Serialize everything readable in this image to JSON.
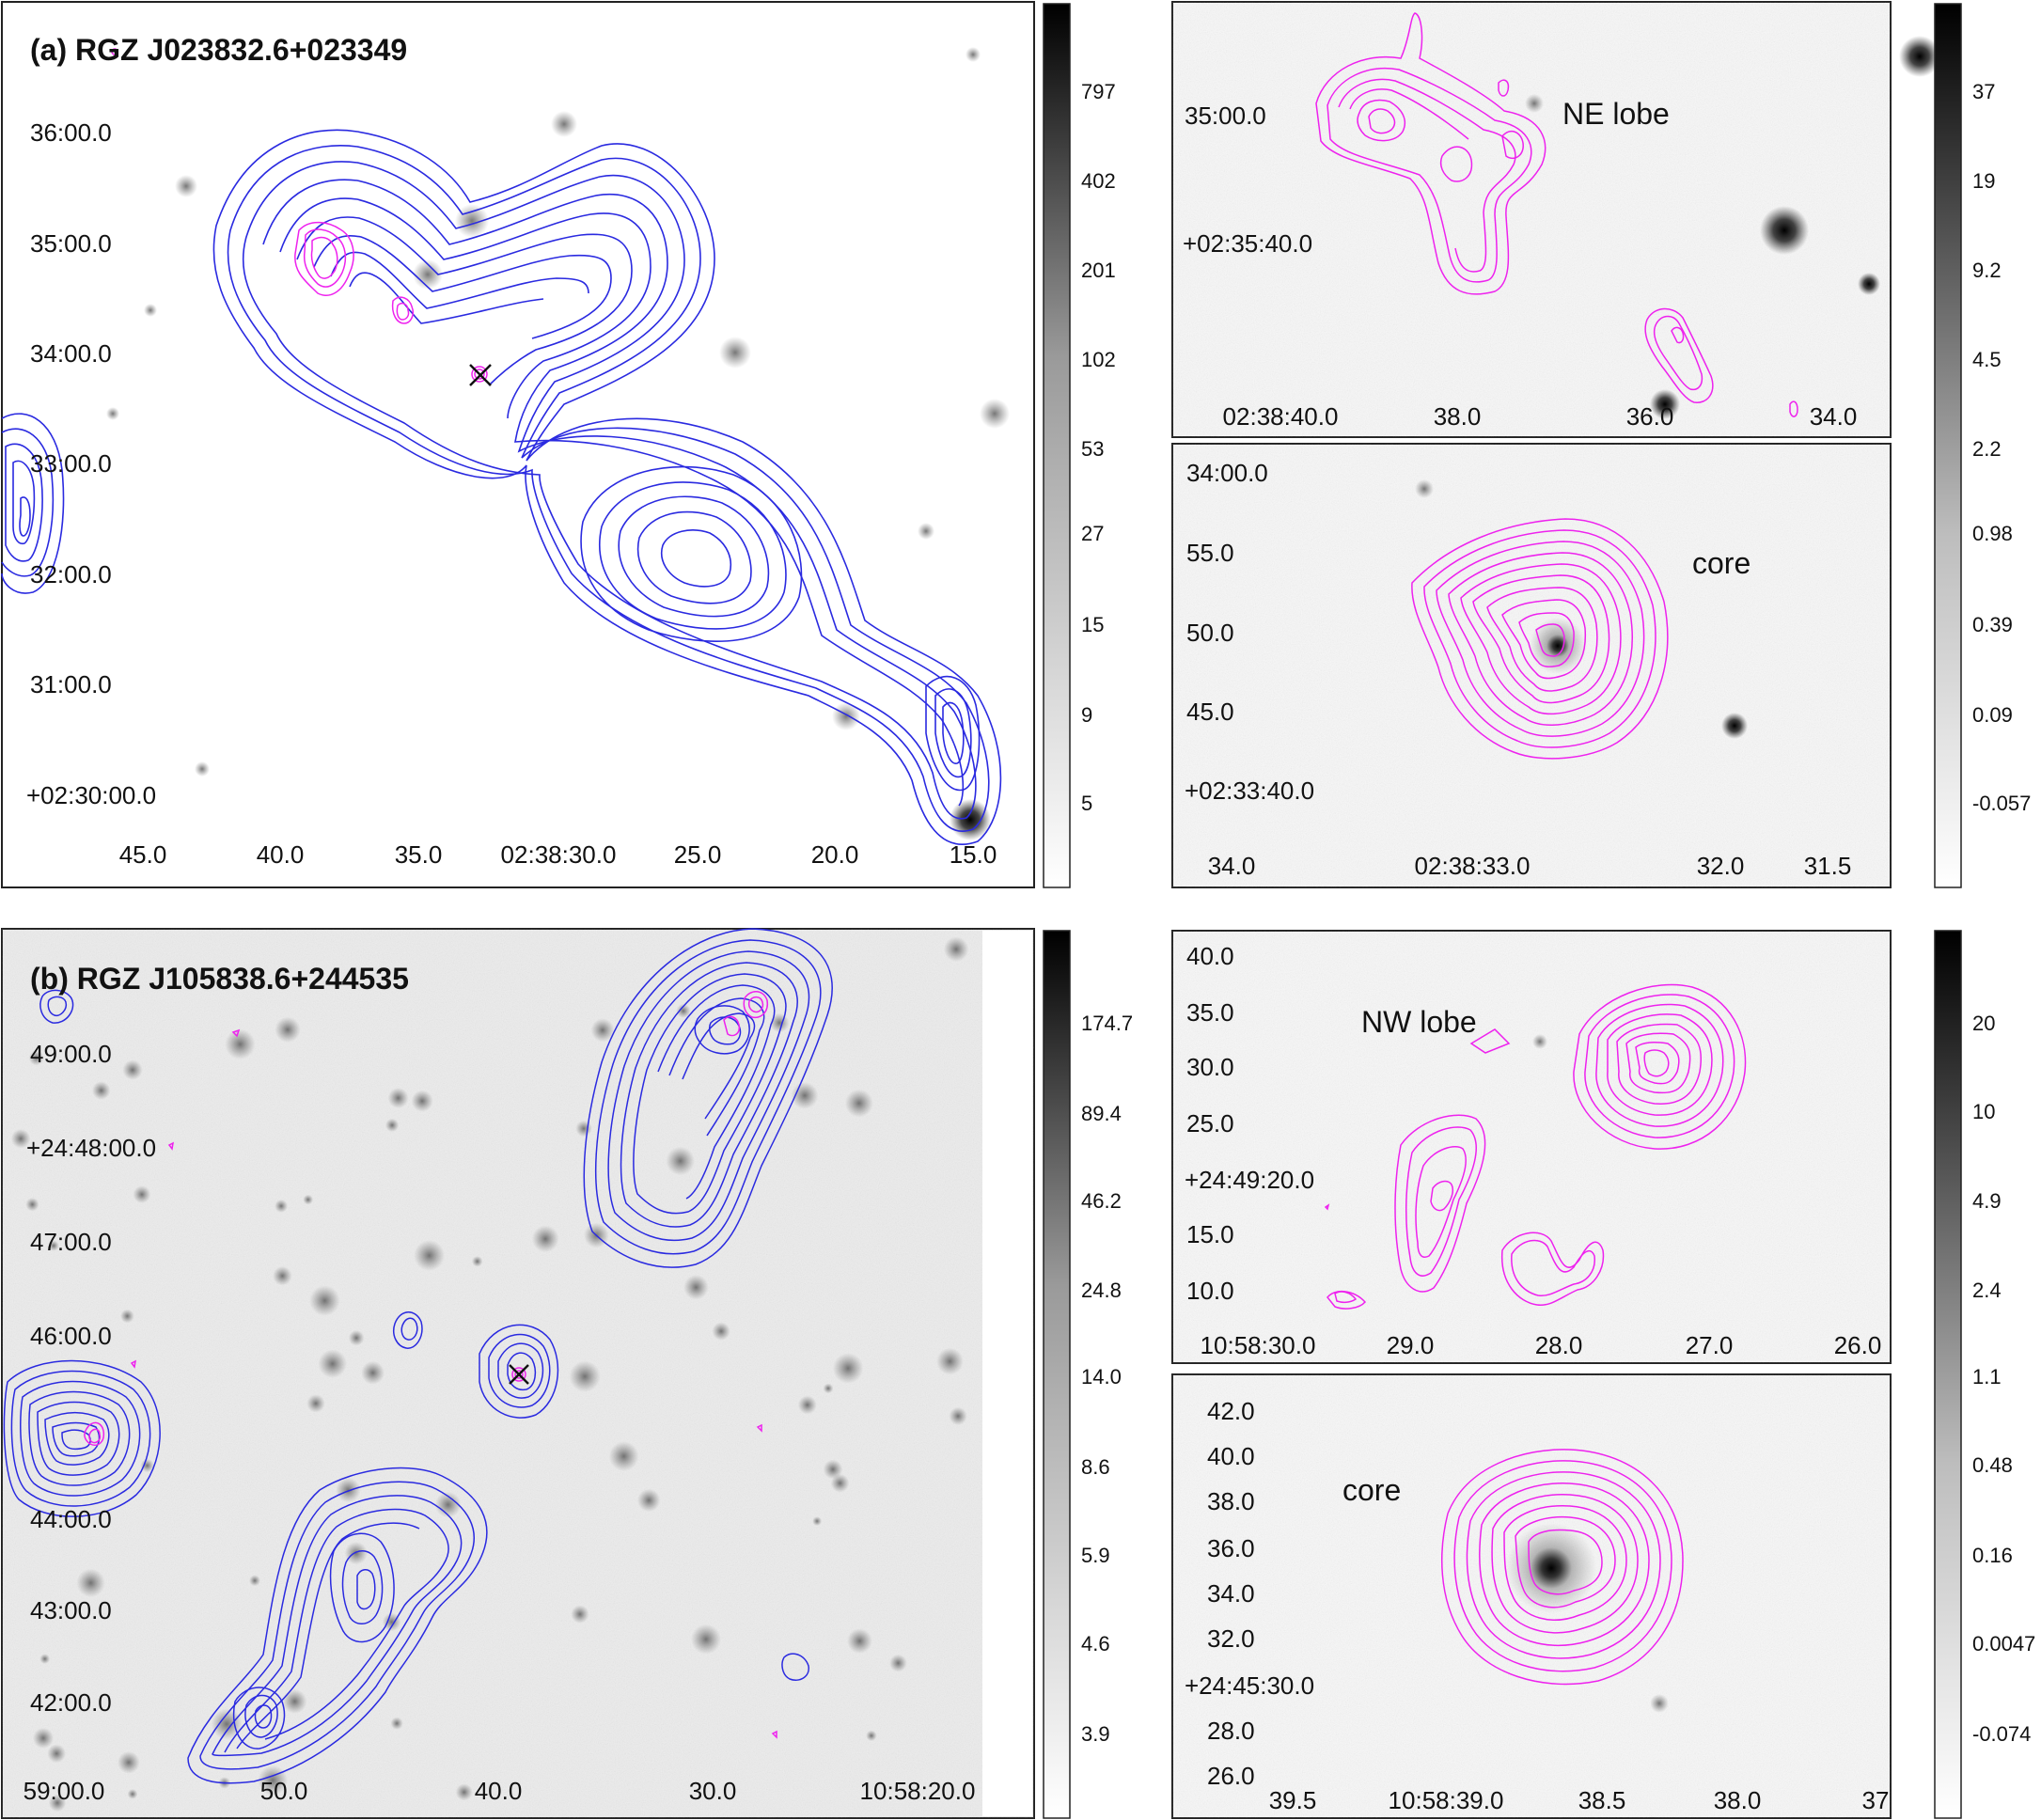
{
  "panel_a": {
    "title": "(a) RGZ J023832.6+023349",
    "main_ylabels": [
      "36:00.0",
      "35:00.0",
      "34:00.0",
      "33:00.0",
      "32:00.0",
      "31:00.0",
      "+02:30:00.0"
    ],
    "main_xlabels": [
      "45.0",
      "40.0",
      "35.0",
      "02:38:30.0",
      "25.0",
      "20.0",
      "15.0"
    ],
    "colorbar": [
      "797",
      "402",
      "201",
      "102",
      "53",
      "27",
      "15",
      "9",
      "5"
    ],
    "top_inset": {
      "label": "NE lobe",
      "ylabels": [
        "35:00.0",
        "+02:35:40.0"
      ],
      "xlabels": [
        "02:38:40.0",
        "38.0",
        "36.0",
        "34.0"
      ]
    },
    "bottom_inset": {
      "label": "core",
      "ylabels": [
        "34:00.0",
        "55.0",
        "50.0",
        "45.0",
        "+02:33:40.0"
      ],
      "xlabels": [
        "34.0",
        "02:38:33.0",
        "32.0",
        "31.5"
      ]
    },
    "inset_colorbar": [
      "37",
      "19",
      "9.2",
      "4.5",
      "2.2",
      "0.98",
      "0.39",
      "0.09",
      "-0.057"
    ]
  },
  "panel_b": {
    "title": "(b) RGZ J105838.6+244535",
    "main_ylabels": [
      "49:00.0",
      "+24:48:00.0",
      "47:00.0",
      "46:00.0",
      "44:00.0",
      "43:00.0",
      "42:00.0"
    ],
    "main_xlabels": [
      "59:00.0",
      "50.0",
      "40.0",
      "30.0",
      "10:58:20.0"
    ],
    "colorbar": [
      "174.7",
      "89.4",
      "46.2",
      "24.8",
      "14.0",
      "8.6",
      "5.9",
      "4.6",
      "3.9"
    ],
    "top_inset": {
      "label": "NW lobe",
      "ylabels": [
        "40.0",
        "35.0",
        "30.0",
        "25.0",
        "+24:49:20.0",
        "15.0",
        "10.0"
      ],
      "xlabels": [
        "10:58:30.0",
        "29.0",
        "28.0",
        "27.0",
        "26.0"
      ]
    },
    "bottom_inset": {
      "label": "core",
      "ylabels": [
        "42.0",
        "40.0",
        "38.0",
        "36.0",
        "34.0",
        "32.0",
        "+24:45:30.0",
        "28.0",
        "26.0"
      ],
      "xlabels": [
        "39.5",
        "10:58:39.0",
        "38.5",
        "38.0",
        "37"
      ]
    },
    "inset_colorbar": [
      "20",
      "10",
      "4.9",
      "2.4",
      "1.1",
      "0.48",
      "0.16",
      "0.0047",
      "-0.074"
    ]
  },
  "colors": {
    "blue_contour": "#2a2ae0",
    "magenta_contour": "#ee22ee",
    "frame": "#222222"
  }
}
